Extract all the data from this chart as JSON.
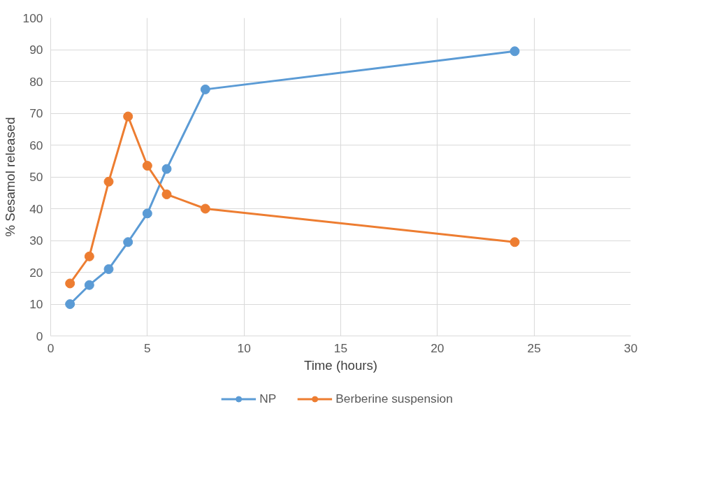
{
  "chart_data": {
    "type": "line",
    "xlabel": "Time (hours)",
    "ylabel": "% Sesamol released",
    "xlim": [
      0,
      30
    ],
    "xticks": [
      0,
      5,
      10,
      15,
      20,
      25,
      30
    ],
    "ylim": [
      0,
      100
    ],
    "yticks": [
      0,
      10,
      20,
      30,
      40,
      50,
      60,
      70,
      80,
      90,
      100
    ],
    "grid": true,
    "legend": "bottom",
    "marker": "circle",
    "line_style": "solid",
    "x": [
      1,
      2,
      3,
      4,
      5,
      6,
      8,
      24
    ],
    "series": [
      {
        "name": "NP",
        "color": "#5b9bd5",
        "values": [
          10,
          16,
          21,
          29.5,
          38.5,
          52.5,
          77.5,
          89.5
        ]
      },
      {
        "name": "Berberine suspension",
        "color": "#ed7d31",
        "values": [
          16.5,
          25,
          48.5,
          69,
          53.5,
          44.5,
          40,
          29.5
        ]
      }
    ]
  }
}
